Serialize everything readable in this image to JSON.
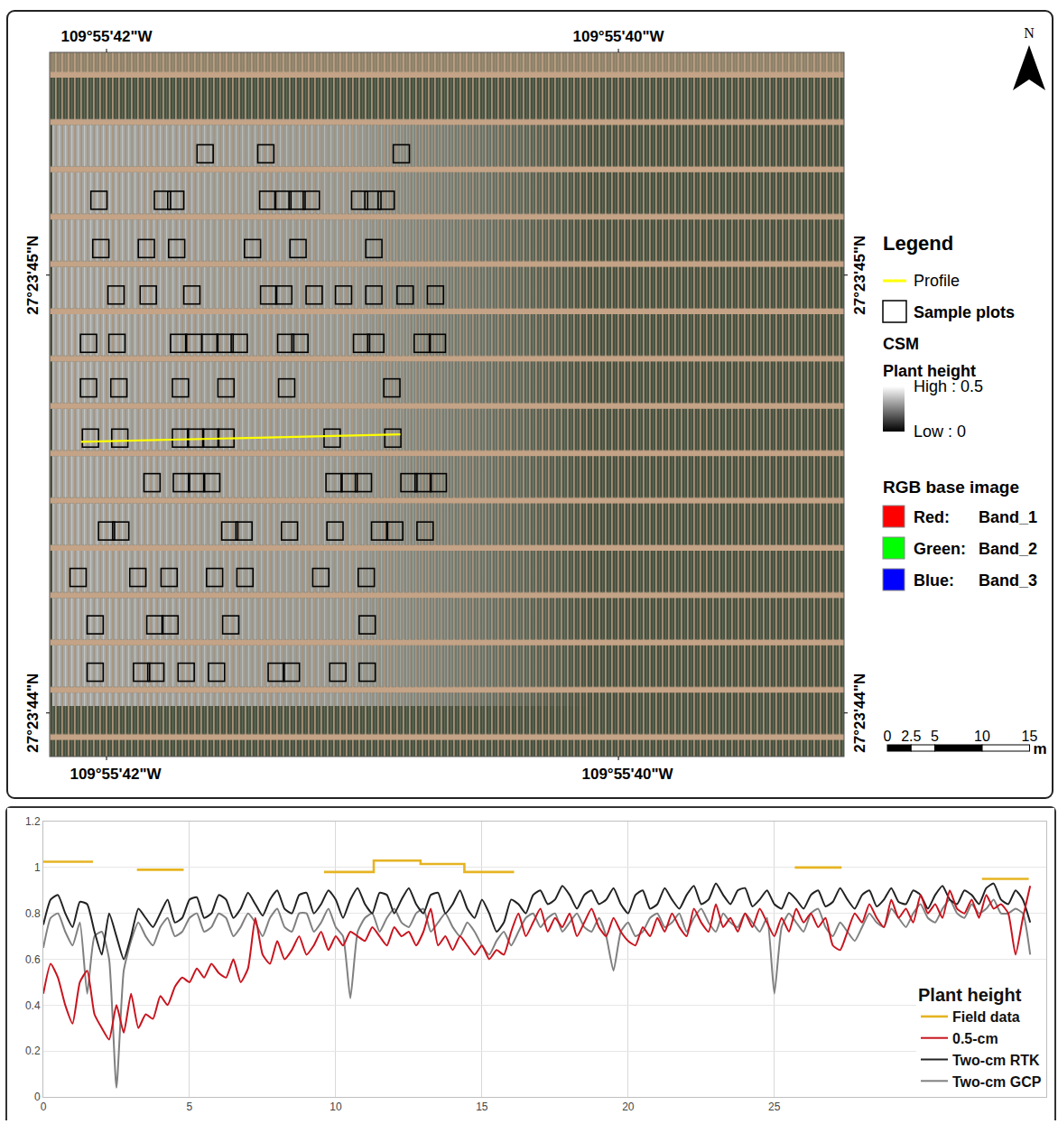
{
  "map": {
    "xlim": [
      0,
      83.8
    ],
    "ylim": [
      0,
      74.3
    ],
    "longitude_labels": [
      {
        "value": 6.0,
        "label": "109°55'42\"W"
      },
      {
        "value": 60.0,
        "label": "109°55'40\"W"
      }
    ],
    "latitude_labels": [
      {
        "value": 23.5,
        "label": "27°23'45\"N"
      },
      {
        "value": 69.7,
        "label": "27°23'44\"N"
      }
    ],
    "north": "N",
    "legend_title": "Legend",
    "profile": {
      "label": "Profile",
      "color": "#ffff00",
      "x": [
        3.3,
        37.0
      ],
      "y": [
        41.1,
        40.3
      ]
    },
    "sample_plots": {
      "label": "Sample plots",
      "size": [
        1.7,
        1.9
      ],
      "rows": [
        {
          "y": 10.7,
          "x": [
            16.4,
            22.8,
            37.1
          ]
        },
        {
          "y": 15.6,
          "x": [
            5.2,
            11.9,
            13.3,
            23.0,
            24.6,
            26.1,
            27.6,
            32.7,
            34.1,
            35.5
          ]
        },
        {
          "y": 20.7,
          "x": [
            5.4,
            10.2,
            13.4,
            21.4,
            26.2,
            34.2
          ]
        },
        {
          "y": 25.6,
          "x": [
            7.0,
            10.4,
            15.0,
            23.1,
            24.7,
            27.9,
            31.0,
            34.2,
            37.5,
            40.7
          ]
        },
        {
          "y": 30.7,
          "x": [
            4.1,
            7.1,
            13.6,
            15.2,
            16.9,
            18.5,
            20.0,
            24.9,
            26.4,
            32.9,
            34.4,
            39.3,
            40.9
          ]
        },
        {
          "y": 35.4,
          "x": [
            4.1,
            7.3,
            13.8,
            18.6,
            25.0,
            36.1
          ]
        },
        {
          "y": 40.7,
          "x": [
            4.3,
            7.4,
            13.8,
            15.4,
            17.0,
            18.6,
            29.8,
            36.2
          ]
        },
        {
          "y": 45.4,
          "x": [
            10.8,
            13.9,
            15.5,
            17.1,
            30.0,
            31.6,
            33.1,
            37.9,
            39.4,
            41.0
          ]
        },
        {
          "y": 50.5,
          "x": [
            6.0,
            7.5,
            19.0,
            20.5,
            25.3,
            30.1,
            34.8,
            36.4,
            39.6
          ]
        },
        {
          "y": 55.4,
          "x": [
            3.0,
            9.3,
            12.6,
            17.4,
            20.6,
            28.6,
            33.4
          ]
        },
        {
          "y": 60.4,
          "x": [
            4.8,
            11.1,
            12.7,
            19.1,
            33.5
          ]
        },
        {
          "y": 65.4,
          "x": [
            4.8,
            9.7,
            11.2,
            14.4,
            17.6,
            23.9,
            25.5,
            30.4,
            33.5
          ]
        }
      ]
    },
    "csm": {
      "label": "CSM",
      "title": "Plant height",
      "ticks": [
        {
          "value": 0.5,
          "label": "High : 0.5"
        },
        {
          "value": 0,
          "label": "Low : 0"
        }
      ]
    },
    "rgb": {
      "title": "RGB base image",
      "bands": [
        {
          "label": "Red:",
          "band": "Band_1",
          "color": "#ff0000"
        },
        {
          "label": "Green:",
          "band": "Band_2",
          "color": "#00ff00"
        },
        {
          "label": "Blue:",
          "band": "Band_3",
          "color": "#0000ff"
        }
      ]
    },
    "scale_bar": {
      "ticks": [
        0,
        2.5,
        5,
        10,
        15
      ],
      "unit": "m"
    }
  },
  "chart_data": {
    "type": "line",
    "legend_title": "Plant height",
    "legend": "lower right",
    "grid": true,
    "xlim": [
      0,
      34.3
    ],
    "xticks": [
      0,
      5,
      10,
      15,
      20,
      25
    ],
    "ylim": [
      0,
      1.2
    ],
    "yticks": [
      0,
      0.2,
      0.4,
      0.6,
      0.8,
      1,
      1.2
    ],
    "x": [
      0,
      0.25,
      0.5,
      0.75,
      1,
      1.25,
      1.5,
      1.75,
      2,
      2.25,
      2.5,
      2.75,
      3,
      3.25,
      3.5,
      3.75,
      4,
      4.25,
      4.5,
      4.75,
      5,
      5.25,
      5.5,
      5.75,
      6,
      6.25,
      6.5,
      6.75,
      7,
      7.25,
      7.5,
      7.75,
      8,
      8.25,
      8.5,
      8.75,
      9,
      9.25,
      9.5,
      9.75,
      10,
      10.25,
      10.5,
      10.75,
      11,
      11.25,
      11.5,
      11.75,
      12,
      12.25,
      12.5,
      12.75,
      13,
      13.25,
      13.5,
      13.75,
      14,
      14.25,
      14.5,
      14.75,
      15,
      15.25,
      15.5,
      15.75,
      16,
      16.25,
      16.5,
      16.75,
      17,
      17.25,
      17.5,
      17.75,
      18,
      18.25,
      18.5,
      18.75,
      19,
      19.25,
      19.5,
      19.75,
      20,
      20.25,
      20.5,
      20.75,
      21,
      21.25,
      21.5,
      21.75,
      22,
      22.25,
      22.5,
      22.75,
      23,
      23.25,
      23.5,
      23.75,
      24,
      24.25,
      24.5,
      24.75,
      25,
      25.25,
      25.5,
      25.75,
      26,
      26.25,
      26.5,
      26.75,
      27,
      27.25,
      27.5,
      27.75,
      28,
      28.25,
      28.5,
      28.75,
      29,
      29.25,
      29.5,
      29.75,
      30,
      30.25,
      30.5,
      30.75,
      31,
      31.25,
      31.5,
      31.75,
      32,
      32.25,
      32.5,
      32.75,
      33,
      33.25,
      33.5,
      33.75
    ],
    "series": [
      {
        "name": "Field data",
        "color": "#e6b422",
        "x": [
          0,
          1.7,
          null,
          3.2,
          4.8,
          null,
          9.6,
          11.3,
          11.3,
          12.9,
          12.9,
          14.4,
          14.4,
          16.1,
          null,
          25.7,
          27.3,
          null,
          32.1,
          33.7
        ],
        "values": [
          1.025,
          1.025,
          null,
          0.99,
          0.99,
          null,
          0.98,
          0.98,
          1.03,
          1.03,
          1.015,
          1.015,
          0.98,
          0.98,
          null,
          1.0,
          1.0,
          null,
          0.95,
          0.95
        ]
      },
      {
        "name": "0.5-cm",
        "color": "#c8141e",
        "values": [
          0.45,
          0.58,
          0.52,
          0.4,
          0.32,
          0.5,
          0.55,
          0.36,
          0.3,
          0.25,
          0.4,
          0.28,
          0.45,
          0.3,
          0.36,
          0.34,
          0.44,
          0.4,
          0.48,
          0.52,
          0.5,
          0.56,
          0.52,
          0.58,
          0.54,
          0.52,
          0.6,
          0.5,
          0.56,
          0.78,
          0.62,
          0.58,
          0.68,
          0.6,
          0.64,
          0.7,
          0.62,
          0.66,
          0.72,
          0.64,
          0.7,
          0.66,
          0.72,
          0.7,
          0.68,
          0.74,
          0.7,
          0.66,
          0.74,
          0.7,
          0.72,
          0.66,
          0.72,
          0.82,
          0.66,
          0.7,
          0.64,
          0.7,
          0.66,
          0.62,
          0.66,
          0.6,
          0.64,
          0.62,
          0.72,
          0.8,
          0.7,
          0.76,
          0.82,
          0.72,
          0.78,
          0.74,
          0.8,
          0.7,
          0.76,
          0.82,
          0.74,
          0.7,
          0.78,
          0.72,
          0.68,
          0.66,
          0.74,
          0.7,
          0.78,
          0.72,
          0.8,
          0.74,
          0.7,
          0.82,
          0.76,
          0.72,
          0.84,
          0.74,
          0.78,
          0.72,
          0.8,
          0.74,
          0.82,
          0.76,
          0.7,
          0.78,
          0.72,
          0.82,
          0.76,
          0.8,
          0.74,
          0.78,
          0.66,
          0.64,
          0.72,
          0.8,
          0.76,
          0.84,
          0.78,
          0.74,
          0.86,
          0.78,
          0.82,
          0.76,
          0.88,
          0.8,
          0.84,
          0.78,
          0.9,
          0.82,
          0.8,
          0.86,
          0.78,
          0.88,
          0.82,
          0.84,
          0.8,
          0.62,
          0.78,
          0.92
        ]
      },
      {
        "name": "Two-cm RTK",
        "color": "#222222",
        "values": [
          0.75,
          0.86,
          0.88,
          0.8,
          0.74,
          0.85,
          0.84,
          0.72,
          0.62,
          0.8,
          0.7,
          0.6,
          0.7,
          0.82,
          0.78,
          0.74,
          0.8,
          0.86,
          0.76,
          0.78,
          0.86,
          0.87,
          0.78,
          0.8,
          0.88,
          0.86,
          0.78,
          0.82,
          0.89,
          0.84,
          0.79,
          0.86,
          0.9,
          0.82,
          0.8,
          0.88,
          0.89,
          0.8,
          0.84,
          0.9,
          0.86,
          0.78,
          0.86,
          0.91,
          0.84,
          0.8,
          0.89,
          0.88,
          0.8,
          0.86,
          0.91,
          0.84,
          0.8,
          0.88,
          0.89,
          0.8,
          0.84,
          0.9,
          0.82,
          0.78,
          0.86,
          0.8,
          0.72,
          0.76,
          0.86,
          0.84,
          0.8,
          0.88,
          0.9,
          0.84,
          0.86,
          0.92,
          0.88,
          0.82,
          0.88,
          0.9,
          0.84,
          0.86,
          0.91,
          0.84,
          0.8,
          0.88,
          0.9,
          0.82,
          0.84,
          0.91,
          0.86,
          0.82,
          0.88,
          0.92,
          0.84,
          0.86,
          0.93,
          0.88,
          0.84,
          0.9,
          0.91,
          0.83,
          0.86,
          0.9,
          0.84,
          0.82,
          0.89,
          0.86,
          0.82,
          0.88,
          0.9,
          0.83,
          0.85,
          0.91,
          0.86,
          0.82,
          0.88,
          0.9,
          0.83,
          0.86,
          0.91,
          0.85,
          0.84,
          0.9,
          0.88,
          0.82,
          0.88,
          0.92,
          0.86,
          0.84,
          0.9,
          0.88,
          0.84,
          0.91,
          0.93,
          0.86,
          0.84,
          0.9,
          0.86,
          0.76
        ]
      },
      {
        "name": "Two-cm GCP",
        "color": "#808080",
        "values": [
          0.65,
          0.78,
          0.8,
          0.72,
          0.66,
          0.76,
          0.45,
          0.7,
          0.72,
          0.6,
          0.04,
          0.55,
          0.68,
          0.76,
          0.7,
          0.66,
          0.74,
          0.78,
          0.7,
          0.72,
          0.78,
          0.8,
          0.72,
          0.74,
          0.8,
          0.78,
          0.7,
          0.74,
          0.8,
          0.76,
          0.7,
          0.78,
          0.82,
          0.74,
          0.72,
          0.8,
          0.8,
          0.72,
          0.76,
          0.82,
          0.74,
          0.7,
          0.43,
          0.72,
          0.78,
          0.8,
          0.72,
          0.78,
          0.82,
          0.76,
          0.74,
          0.8,
          0.82,
          0.72,
          0.76,
          0.8,
          0.74,
          0.7,
          0.76,
          0.72,
          0.66,
          0.62,
          0.68,
          0.72,
          0.66,
          0.72,
          0.78,
          0.8,
          0.74,
          0.78,
          0.8,
          0.72,
          0.76,
          0.8,
          0.74,
          0.72,
          0.78,
          0.7,
          0.55,
          0.72,
          0.76,
          0.7,
          0.72,
          0.78,
          0.8,
          0.74,
          0.76,
          0.8,
          0.72,
          0.78,
          0.82,
          0.76,
          0.72,
          0.8,
          0.76,
          0.74,
          0.8,
          0.76,
          0.72,
          0.78,
          0.45,
          0.74,
          0.8,
          0.76,
          0.72,
          0.8,
          0.82,
          0.74,
          0.7,
          0.76,
          0.72,
          0.68,
          0.74,
          0.8,
          0.76,
          0.74,
          0.82,
          0.78,
          0.74,
          0.8,
          0.84,
          0.78,
          0.76,
          0.82,
          0.86,
          0.8,
          0.78,
          0.84,
          0.8,
          0.82,
          0.86,
          0.8,
          0.8,
          0.82,
          0.8,
          0.62
        ]
      }
    ]
  }
}
